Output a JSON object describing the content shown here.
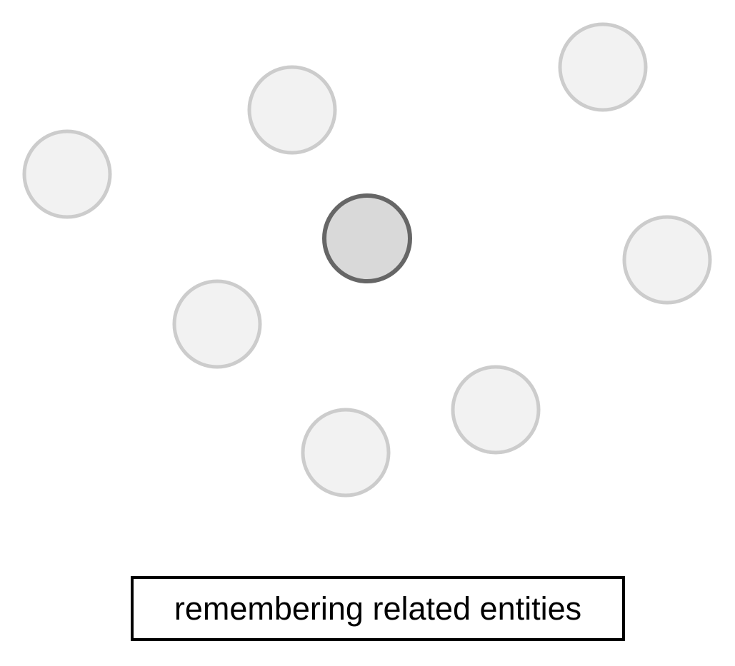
{
  "caption": "remembering related entities",
  "nodes": [
    {
      "id": "central-entity",
      "role": "focus"
    },
    {
      "id": "related-entity-1",
      "role": "related"
    },
    {
      "id": "related-entity-2",
      "role": "related"
    },
    {
      "id": "related-entity-3",
      "role": "related"
    },
    {
      "id": "related-entity-4",
      "role": "related"
    },
    {
      "id": "related-entity-5",
      "role": "related"
    },
    {
      "id": "related-entity-6",
      "role": "related"
    },
    {
      "id": "related-entity-7",
      "role": "related"
    }
  ],
  "colors": {
    "focus_fill": "#d9d9d9",
    "focus_stroke": "#666666",
    "related_fill": "#f2f2f2",
    "related_stroke": "#cccccc",
    "caption_border": "#000000"
  }
}
